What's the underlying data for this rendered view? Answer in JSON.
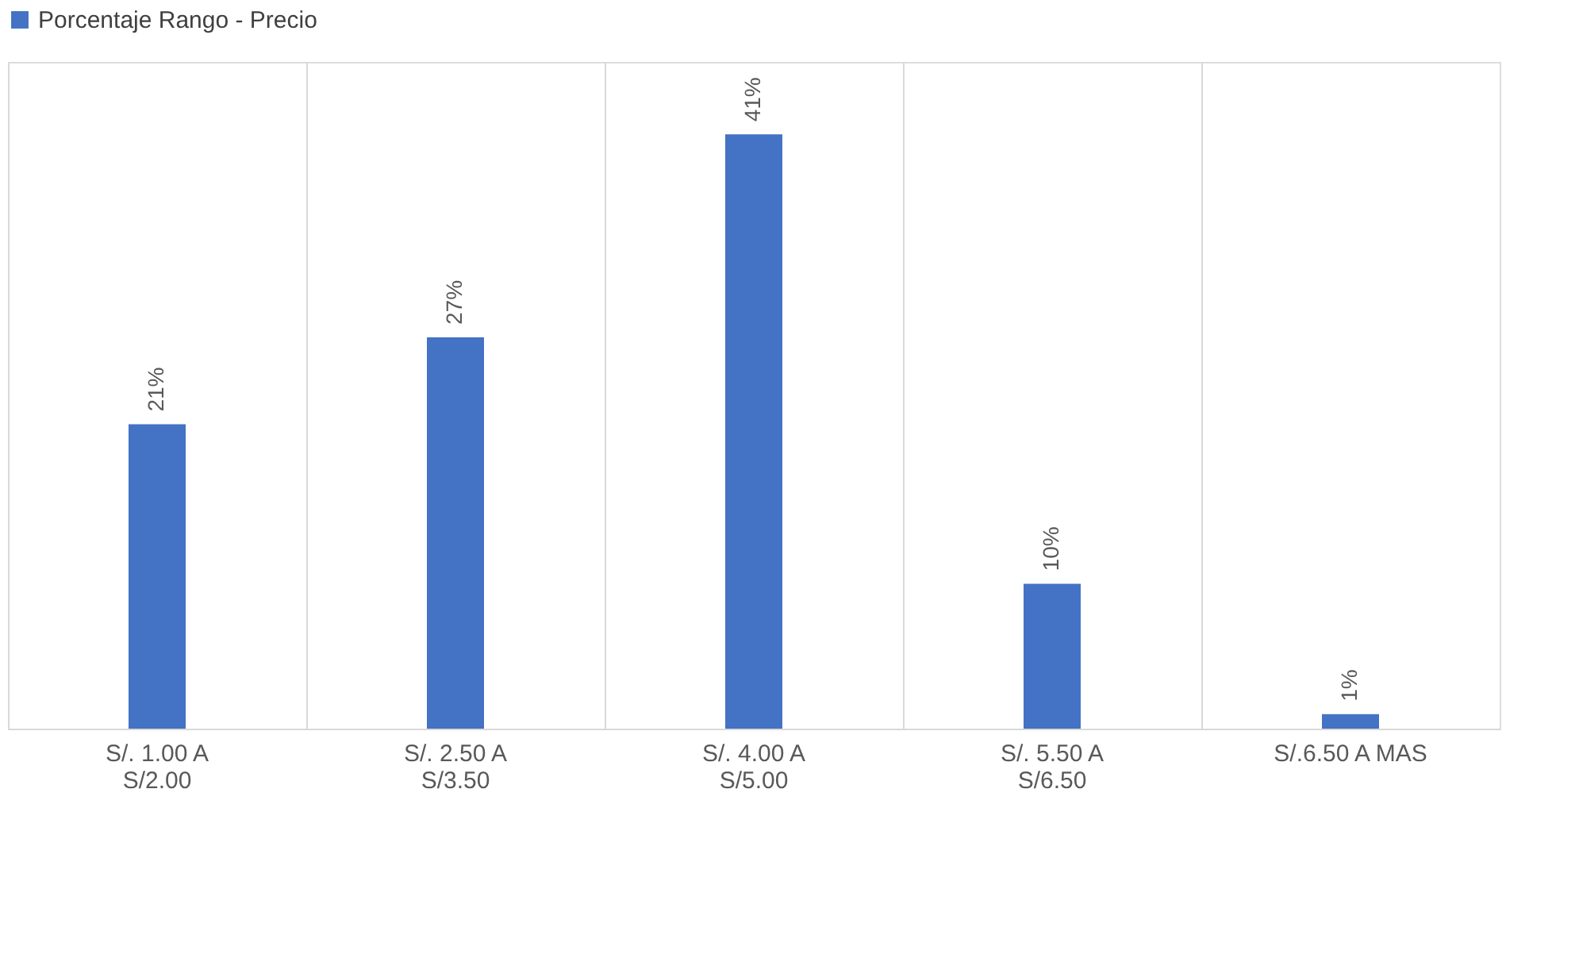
{
  "chart_data": {
    "type": "bar",
    "categories": [
      "S/. 1.00 A\nS/2.00",
      "S/. 2.50 A\nS/3.50",
      "S/. 4.00 A\nS/5.00",
      "S/. 5.50 A\nS/6.50",
      "S/.6.50 A MAS"
    ],
    "series": [
      {
        "name": "Porcentaje Rango - Precio",
        "color": "#4472c4",
        "values": [
          21,
          27,
          41,
          10,
          1
        ],
        "value_labels": [
          "21%",
          "27%",
          "41%",
          "10%",
          "1%"
        ]
      }
    ],
    "ylim": [
      0,
      46
    ],
    "tick_labels": "x",
    "grid": "x",
    "legend": "top"
  }
}
